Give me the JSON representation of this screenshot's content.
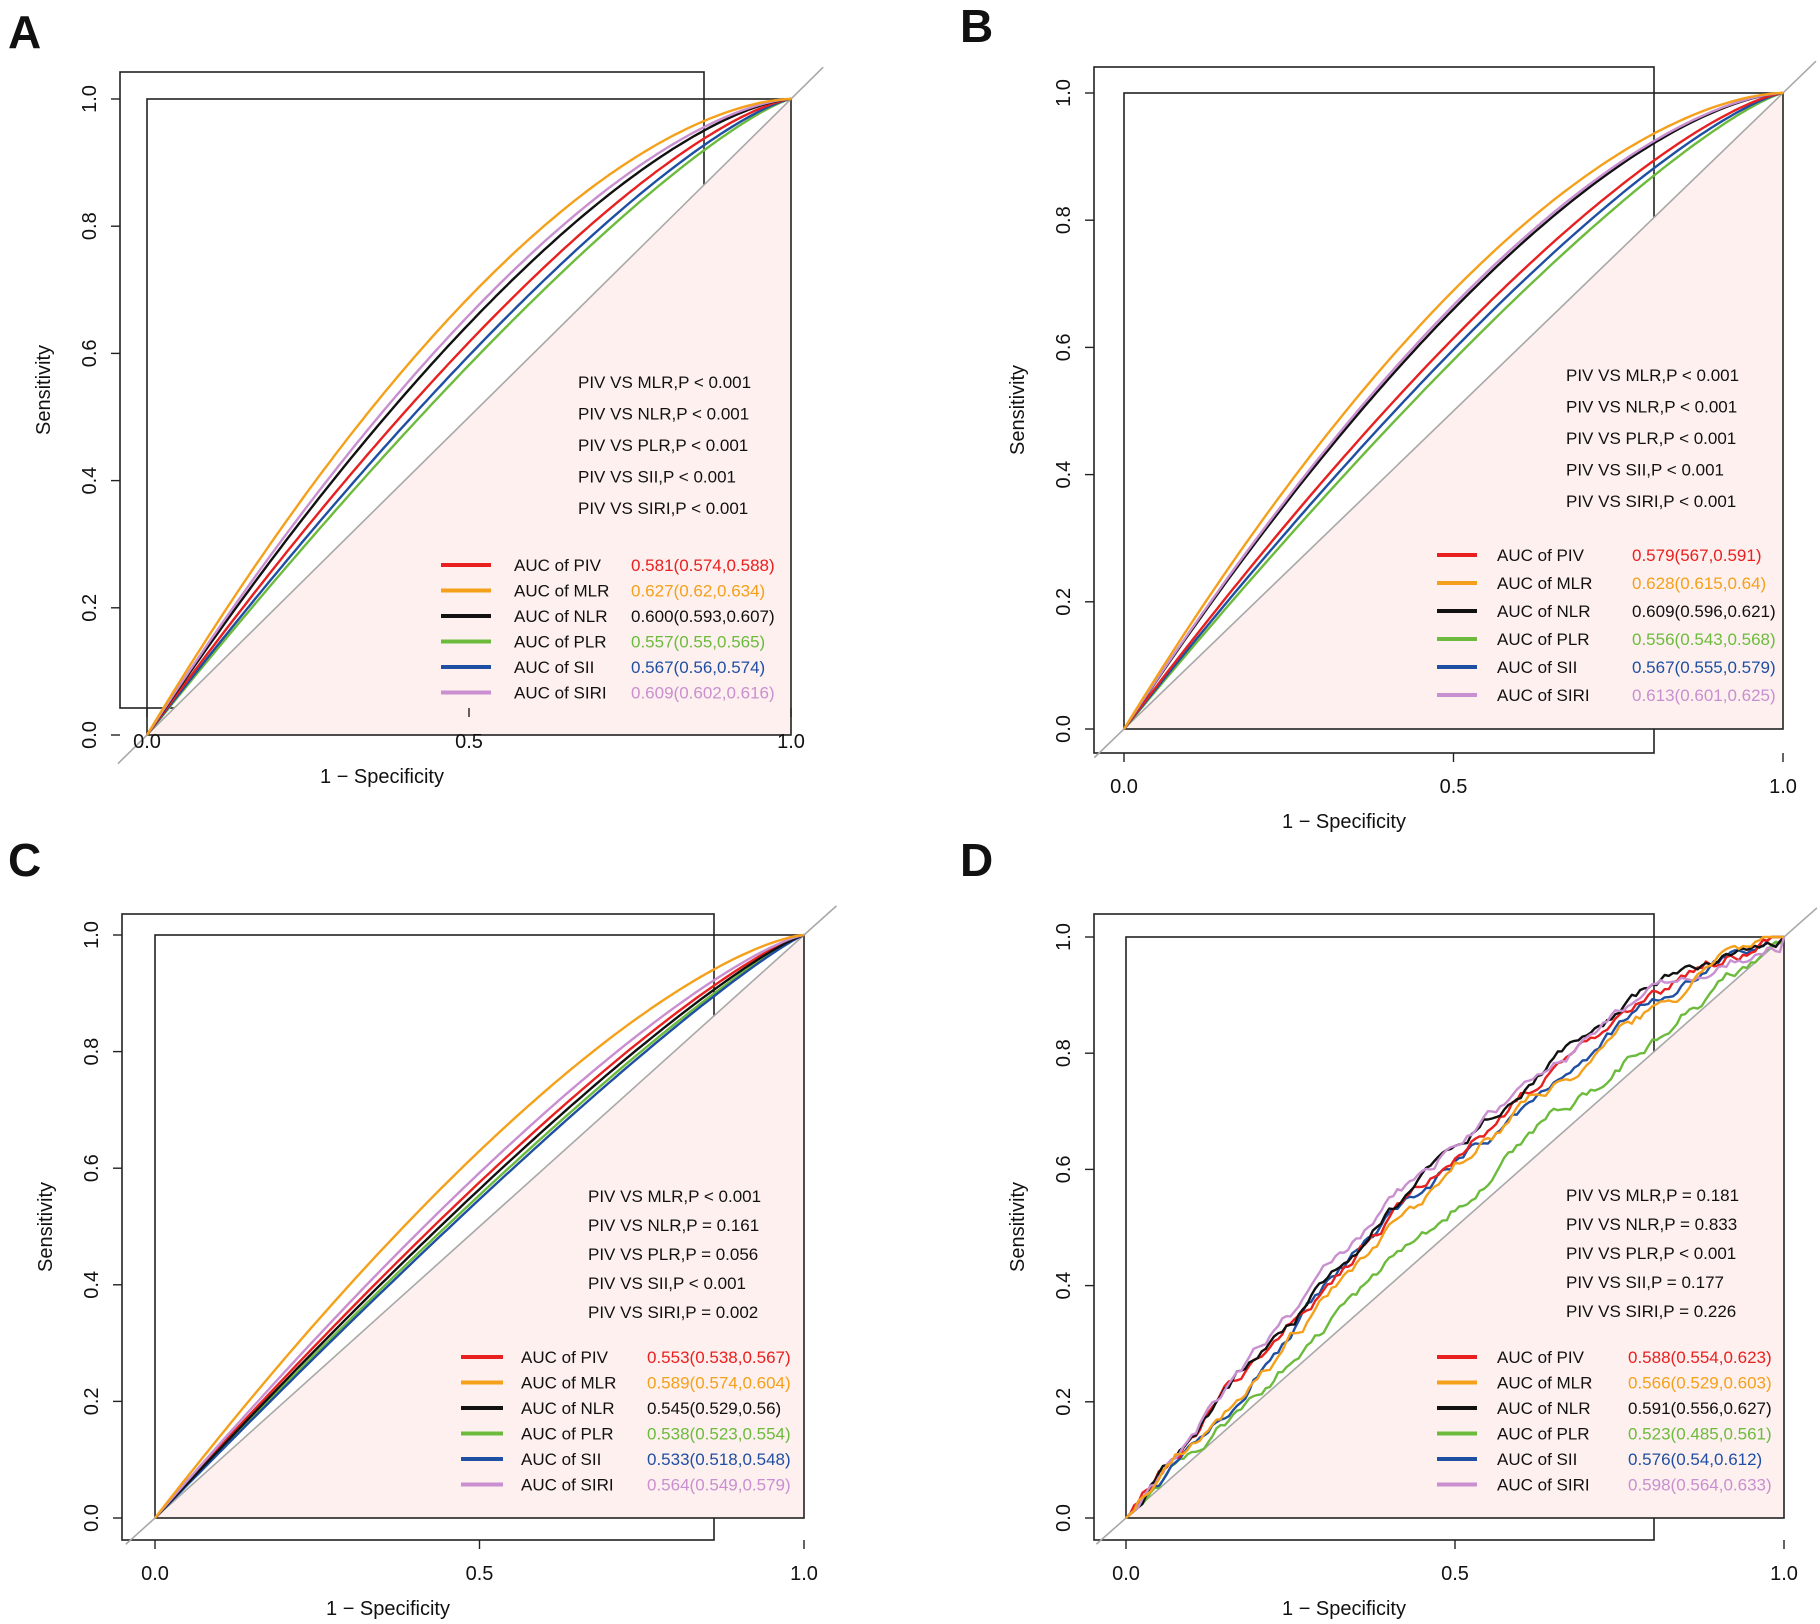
{
  "figure": {
    "panels_order": [
      "A",
      "B",
      "C",
      "D"
    ]
  },
  "colors": {
    "PIV": "#e8201f",
    "MLR": "#f5a01a",
    "NLR": "#111111",
    "PLR": "#6cbb3c",
    "SII": "#1f4fa3",
    "SIRI": "#c98fd0",
    "diag": "#a8a8a8",
    "fill": "#fdf0ef"
  },
  "chart_data": [
    {
      "panel": "A",
      "type": "line",
      "title": "A",
      "xlabel": "1 − Specificity",
      "ylabel": "Sensitivity",
      "xlim": [
        0,
        1
      ],
      "ylim": [
        0,
        1
      ],
      "xticks": [
        "0.0",
        "0.5",
        "1.0"
      ],
      "yticks": [
        "0.0",
        "0.2",
        "0.4",
        "0.6",
        "0.8",
        "1.0"
      ],
      "comparisons": [
        "PIV VS MLR,P < 0.001",
        "PIV VS NLR,P < 0.001",
        "PIV VS PLR,P < 0.001",
        "PIV VS SII,P < 0.001",
        "PIV VS SIRI,P < 0.001"
      ],
      "series": [
        {
          "name": "PIV",
          "legend": "AUC of PIV",
          "auc_text": "0.581(0.574,0.588)",
          "color": "#e8201f",
          "auc": 0.581
        },
        {
          "name": "MLR",
          "legend": "AUC of MLR",
          "auc_text": "0.627(0.62,0.634)",
          "color": "#f5a01a",
          "auc": 0.627
        },
        {
          "name": "NLR",
          "legend": "AUC of NLR",
          "auc_text": "0.600(0.593,0.607)",
          "color": "#111111",
          "auc": 0.6
        },
        {
          "name": "PLR",
          "legend": "AUC of PLR",
          "auc_text": "0.557(0.55,0.565)",
          "color": "#6cbb3c",
          "auc": 0.557
        },
        {
          "name": "SII",
          "legend": "AUC of SII",
          "auc_text": "0.567(0.56,0.574)",
          "color": "#1f4fa3",
          "auc": 0.567
        },
        {
          "name": "SIRI",
          "legend": "AUC of SIRI",
          "auc_text": "0.609(0.602,0.616)",
          "color": "#c98fd0",
          "auc": 0.609
        }
      ]
    },
    {
      "panel": "B",
      "type": "line",
      "title": "B",
      "xlabel": "1 − Specificity",
      "ylabel": "Sensitivity",
      "xlim": [
        0,
        1
      ],
      "ylim": [
        0,
        1
      ],
      "xticks": [
        "0.0",
        "0.5",
        "1.0"
      ],
      "yticks": [
        "0.0",
        "0.2",
        "0.4",
        "0.6",
        "0.8",
        "1.0"
      ],
      "comparisons": [
        "PIV VS MLR,P < 0.001",
        "PIV VS NLR,P < 0.001",
        "PIV VS PLR,P < 0.001",
        "PIV VS SII,P < 0.001",
        "PIV VS SIRI,P < 0.001"
      ],
      "series": [
        {
          "name": "PIV",
          "legend": "AUC of PIV",
          "auc_text": "0.579(567,0.591)",
          "color": "#e8201f",
          "auc": 0.579
        },
        {
          "name": "MLR",
          "legend": "AUC of MLR",
          "auc_text": "0.628(0.615,0.64)",
          "color": "#f5a01a",
          "auc": 0.628
        },
        {
          "name": "NLR",
          "legend": "AUC of NLR",
          "auc_text": "0.609(0.596,0.621)",
          "color": "#111111",
          "auc": 0.609
        },
        {
          "name": "PLR",
          "legend": "AUC of PLR",
          "auc_text": "0.556(0.543,0.568)",
          "color": "#6cbb3c",
          "auc": 0.556
        },
        {
          "name": "SII",
          "legend": "AUC of SII",
          "auc_text": "0.567(0.555,0.579)",
          "color": "#1f4fa3",
          "auc": 0.567
        },
        {
          "name": "SIRI",
          "legend": "AUC of SIRI",
          "auc_text": "0.613(0.601,0.625)",
          "color": "#c98fd0",
          "auc": 0.613
        }
      ]
    },
    {
      "panel": "C",
      "type": "line",
      "title": "C",
      "xlabel": "1 − Specificity",
      "ylabel": "Sensitivity",
      "xlim": [
        0,
        1
      ],
      "ylim": [
        0,
        1
      ],
      "xticks": [
        "0.0",
        "0.5",
        "1.0"
      ],
      "yticks": [
        "0.0",
        "0.2",
        "0.4",
        "0.6",
        "0.8",
        "1.0"
      ],
      "comparisons": [
        "PIV VS MLR,P < 0.001",
        "PIV VS NLR,P = 0.161",
        "PIV VS PLR,P = 0.056",
        "PIV VS SII,P < 0.001",
        "PIV VS SIRI,P = 0.002"
      ],
      "series": [
        {
          "name": "PIV",
          "legend": "AUC of PIV",
          "auc_text": "0.553(0.538,0.567)",
          "color": "#e8201f",
          "auc": 0.553
        },
        {
          "name": "MLR",
          "legend": "AUC of MLR",
          "auc_text": "0.589(0.574,0.604)",
          "color": "#f5a01a",
          "auc": 0.589
        },
        {
          "name": "NLR",
          "legend": "AUC of NLR",
          "auc_text": "0.545(0.529,0.56)",
          "color": "#111111",
          "auc": 0.545
        },
        {
          "name": "PLR",
          "legend": "AUC of PLR",
          "auc_text": "0.538(0.523,0.554)",
          "color": "#6cbb3c",
          "auc": 0.538
        },
        {
          "name": "SII",
          "legend": "AUC of SII",
          "auc_text": "0.533(0.518,0.548)",
          "color": "#1f4fa3",
          "auc": 0.533
        },
        {
          "name": "SIRI",
          "legend": "AUC of SIRI",
          "auc_text": "0.564(0.549,0.579)",
          "color": "#c98fd0",
          "auc": 0.564
        }
      ]
    },
    {
      "panel": "D",
      "type": "line",
      "title": "D",
      "xlabel": "1 − Specificity",
      "ylabel": "Sensitivity",
      "xlim": [
        0,
        1
      ],
      "ylim": [
        0,
        1
      ],
      "xticks": [
        "0.0",
        "0.5",
        "1.0"
      ],
      "yticks": [
        "0.0",
        "0.2",
        "0.4",
        "0.6",
        "0.8",
        "1.0"
      ],
      "comparisons": [
        "PIV VS MLR,P = 0.181",
        "PIV VS NLR,P = 0.833",
        "PIV VS PLR,P < 0.001",
        "PIV VS SII,P = 0.177",
        "PIV VS SIRI,P = 0.226"
      ],
      "series": [
        {
          "name": "PIV",
          "legend": "AUC of PIV",
          "auc_text": "0.588(0.554,0.623)",
          "color": "#e8201f",
          "auc": 0.588
        },
        {
          "name": "MLR",
          "legend": "AUC of MLR",
          "auc_text": "0.566(0.529,0.603)",
          "color": "#f5a01a",
          "auc": 0.566
        },
        {
          "name": "NLR",
          "legend": "AUC of NLR",
          "auc_text": "0.591(0.556,0.627)",
          "color": "#111111",
          "auc": 0.591
        },
        {
          "name": "PLR",
          "legend": "AUC of PLR",
          "auc_text": "0.523(0.485,0.561)",
          "color": "#6cbb3c",
          "auc": 0.523
        },
        {
          "name": "SII",
          "legend": "AUC of SII",
          "auc_text": "0.576(0.54,0.612)",
          "color": "#1f4fa3",
          "auc": 0.576
        },
        {
          "name": "SIRI",
          "legend": "AUC of SIRI",
          "auc_text": "0.598(0.564,0.633)",
          "color": "#c98fd0",
          "auc": 0.598
        }
      ]
    }
  ]
}
